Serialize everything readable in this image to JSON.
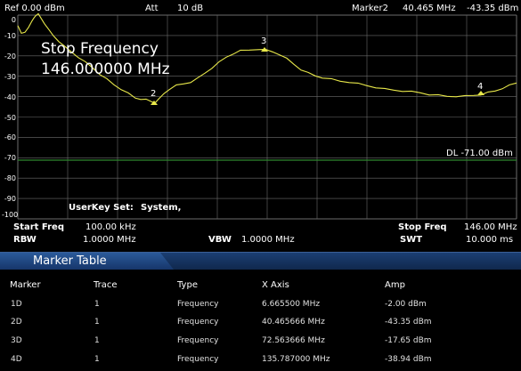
{
  "header": {
    "ref": "Ref  0.00 dBm",
    "att_label": "Att",
    "att_value": "10 dB",
    "marker_name": "Marker2",
    "marker_freq": "40.465 MHz",
    "marker_amp": "-43.35 dBm"
  },
  "overlay": {
    "title": "Stop Frequency",
    "value": "146.000000 MHz",
    "userkey_label": "UserKey Set:",
    "userkey_value": "System,"
  },
  "display_line": "DL -71.00 dBm",
  "y_labels": [
    "0",
    "-10",
    "-20",
    "-30",
    "-40",
    "-50",
    "-60",
    "-70",
    "-80",
    "-90",
    "-100"
  ],
  "markers": [
    "2",
    "3",
    "4"
  ],
  "footer": {
    "start_freq_label": "Start Freq",
    "start_freq_value": "100.00 kHz",
    "rbw_label": "RBW",
    "rbw_value": "1.0000 MHz",
    "vbw_label": "VBW",
    "vbw_value": "1.0000 MHz",
    "stop_freq_label": "Stop Freq",
    "stop_freq_value": "146.00 MHz",
    "swt_label": "SWT",
    "swt_value": "10.000 ms"
  },
  "marker_table": {
    "title": "Marker Table",
    "columns": [
      "Marker",
      "Trace",
      "Type",
      "X Axis",
      "Amp"
    ],
    "rows": [
      [
        "1D",
        "1",
        "Frequency",
        "6.665500 MHz",
        "-2.00 dBm"
      ],
      [
        "2D",
        "1",
        "Frequency",
        "40.465666 MHz",
        "-43.35 dBm"
      ],
      [
        "3D",
        "1",
        "Frequency",
        "72.563666 MHz",
        "-17.65 dBm"
      ],
      [
        "4D",
        "1",
        "Frequency",
        "135.787000 MHz",
        "-38.94 dBm"
      ]
    ]
  },
  "colors": {
    "trace": "#e8e84a",
    "display_line": "#2f8a2f",
    "grid": "#6c6c6c",
    "table_header": "#1b3f73"
  }
}
